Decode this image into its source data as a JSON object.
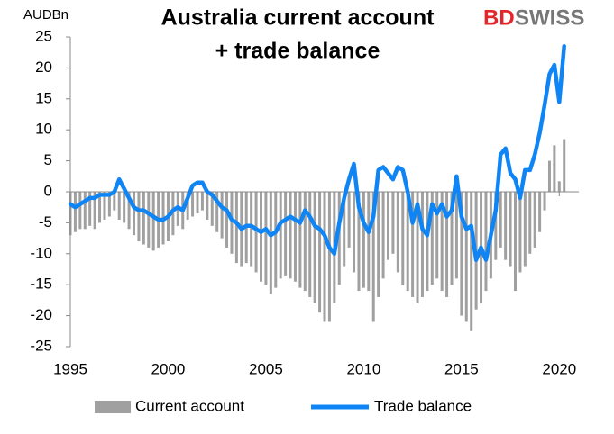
{
  "chart_data": {
    "type": "bar+line",
    "title_lines": [
      "Australia current account",
      "+ trade balance"
    ],
    "y_label": "AUDBn",
    "logo": {
      "left": "BD",
      "right": "SWISS"
    },
    "x": [
      1995,
      1995.25,
      1995.5,
      1995.75,
      1996,
      1996.25,
      1996.5,
      1996.75,
      1997,
      1997.25,
      1997.5,
      1997.75,
      1998,
      1998.25,
      1998.5,
      1998.75,
      1999,
      1999.25,
      1999.5,
      1999.75,
      2000,
      2000.25,
      2000.5,
      2000.75,
      2001,
      2001.25,
      2001.5,
      2001.75,
      2002,
      2002.25,
      2002.5,
      2002.75,
      2003,
      2003.25,
      2003.5,
      2003.75,
      2004,
      2004.25,
      2004.5,
      2004.75,
      2005,
      2005.25,
      2005.5,
      2005.75,
      2006,
      2006.25,
      2006.5,
      2006.75,
      2007,
      2007.25,
      2007.5,
      2007.75,
      2008,
      2008.25,
      2008.5,
      2008.75,
      2009,
      2009.25,
      2009.5,
      2009.75,
      2010,
      2010.25,
      2010.5,
      2010.75,
      2011,
      2011.25,
      2011.5,
      2011.75,
      2012,
      2012.25,
      2012.5,
      2012.75,
      2013,
      2013.25,
      2013.5,
      2013.75,
      2014,
      2014.25,
      2014.5,
      2014.75,
      2015,
      2015.25,
      2015.5,
      2015.75,
      2016,
      2016.25,
      2016.5,
      2016.75,
      2017,
      2017.25,
      2017.5,
      2017.75,
      2018,
      2018.25,
      2018.5,
      2018.75,
      2019,
      2019.25,
      2019.5,
      2019.75,
      2020,
      2020.25
    ],
    "series": [
      {
        "name": "Current account",
        "color": "#a0a0a0",
        "kind": "bar",
        "values": [
          -7,
          -6.5,
          -6,
          -6,
          -5.5,
          -6,
          -5,
          -4.5,
          -4,
          -3,
          -4.5,
          -5,
          -6,
          -7,
          -8,
          -8.5,
          -9,
          -9.5,
          -9,
          -8.5,
          -8,
          -7,
          -5.5,
          -6,
          -4.5,
          -4,
          -3.5,
          -3,
          -4.5,
          -5.5,
          -6.5,
          -7.5,
          -9,
          -10,
          -11.5,
          -12,
          -11.5,
          -12,
          -13,
          -14.5,
          -15,
          -16.5,
          -15.5,
          -14,
          -13.5,
          -14,
          -14.5,
          -15.5,
          -16,
          -17,
          -18,
          -19.5,
          -21,
          -21,
          -18,
          -15,
          -12,
          -9,
          -13,
          -16,
          -15.5,
          -16,
          -21,
          -17,
          -14,
          -11,
          -10,
          -13,
          -15,
          -16,
          -17,
          -18,
          -17,
          -16,
          -15,
          -14,
          -16,
          -17,
          -15,
          -14,
          -20,
          -21,
          -22.5,
          -19,
          -18,
          -16,
          -14,
          -11,
          -9,
          -11,
          -12,
          -16,
          -13,
          -12,
          -10,
          -9,
          -6.5,
          -3,
          5,
          7.5,
          1.7,
          8.5
        ]
      },
      {
        "name": "Trade balance",
        "color": "#0f85f5",
        "kind": "line",
        "values": [
          -2,
          -2.5,
          -2,
          -1.5,
          -1,
          -1,
          -0.5,
          -0.5,
          -0.5,
          0,
          2,
          0.5,
          -1,
          -2.5,
          -3,
          -3,
          -3.5,
          -4,
          -4.5,
          -4.5,
          -4,
          -3,
          -2.5,
          -3,
          -1,
          1,
          1.5,
          1.5,
          0,
          -0.5,
          -1.5,
          -2.5,
          -3,
          -4.5,
          -5,
          -6,
          -5.5,
          -5.5,
          -6,
          -6.5,
          -6,
          -7,
          -6.5,
          -5,
          -4.5,
          -4,
          -4.5,
          -5,
          -3,
          -4,
          -5.5,
          -6,
          -7,
          -9,
          -10,
          -5,
          -1,
          2,
          4.5,
          -2.5,
          -5,
          -6.5,
          -4,
          3.5,
          4,
          3,
          2,
          4,
          3.5,
          0,
          -5,
          -2,
          -6,
          -7,
          -2,
          -3.5,
          -2,
          -4,
          -3,
          2.5,
          -4,
          -6,
          -5.5,
          -11,
          -9,
          -11,
          -7,
          -3,
          6,
          7,
          3,
          2,
          -1,
          3.5,
          3.5,
          6,
          9.5,
          14,
          19,
          20.5,
          14.5,
          23.5
        ]
      }
    ],
    "xlim": [
      1995,
      2021
    ],
    "xticks": [
      1995,
      2000,
      2005,
      2010,
      2015,
      2020
    ],
    "ylim": [
      -25,
      25
    ],
    "yticks": [
      -25,
      -20,
      -15,
      -10,
      -5,
      0,
      5,
      10,
      15,
      20,
      25
    ],
    "grid": false,
    "legend": "bottom"
  }
}
